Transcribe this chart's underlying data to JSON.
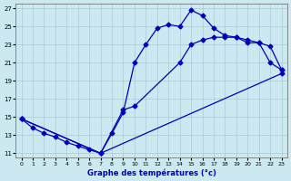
{
  "xlabel": "Graphe des températures (°c)",
  "xlim": [
    -0.5,
    23.5
  ],
  "ylim": [
    10.5,
    27.5
  ],
  "xticks": [
    0,
    1,
    2,
    3,
    4,
    5,
    6,
    7,
    8,
    9,
    10,
    11,
    12,
    13,
    14,
    15,
    16,
    17,
    18,
    19,
    20,
    21,
    22,
    23
  ],
  "yticks": [
    11,
    13,
    15,
    17,
    19,
    21,
    23,
    25,
    27
  ],
  "bg_color": "#cce8f0",
  "line_color": "#0000bb",
  "line1_x": [
    0,
    1,
    2,
    3,
    4,
    5,
    6,
    7,
    8,
    9,
    10,
    11,
    12,
    13,
    14,
    15,
    16,
    17,
    18,
    19,
    20,
    21,
    22,
    23
  ],
  "line1_y": [
    14.8,
    13.8,
    13.2,
    12.8,
    12.2,
    11.8,
    11.4,
    11.0,
    13.2,
    15.5,
    21.0,
    23.0,
    24.8,
    25.2,
    25.0,
    26.8,
    26.2,
    24.8,
    24.0,
    23.8,
    23.2,
    23.2,
    21.0,
    20.2
  ],
  "line2_x": [
    0,
    7,
    9,
    10,
    14,
    15,
    16,
    17,
    18,
    19,
    20,
    21,
    22,
    23
  ],
  "line2_y": [
    14.8,
    11.0,
    15.8,
    16.2,
    21.0,
    23.0,
    23.5,
    23.8,
    23.8,
    23.8,
    23.5,
    23.2,
    22.8,
    20.2
  ],
  "line3_x": [
    0,
    7,
    23
  ],
  "line3_y": [
    14.8,
    11.0,
    19.8
  ]
}
